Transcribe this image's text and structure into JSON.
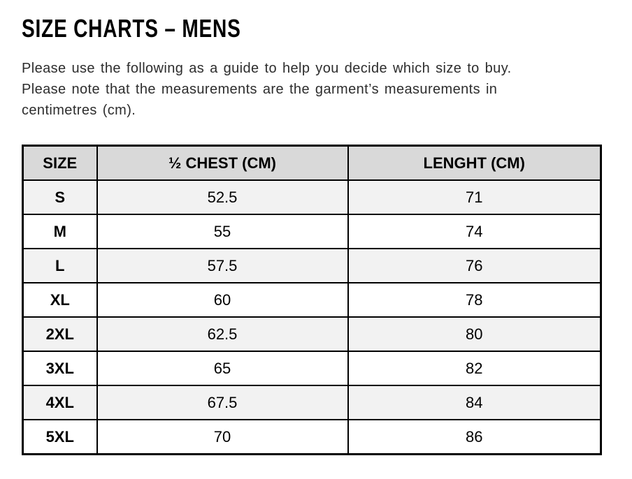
{
  "document": {
    "title": "SIZE CHARTS – MENS",
    "intro_lines": [
      "Please use the following as a guide to help you decide which size to buy.",
      "Please note that the measurements are the garment’s measurements in",
      "centimetres (cm)."
    ]
  },
  "size_table": {
    "headers": [
      "SIZE",
      "½ CHEST (CM)",
      "LENGHT (CM)"
    ],
    "rows": [
      [
        "S",
        "52.5",
        "71"
      ],
      [
        "M",
        "55",
        "74"
      ],
      [
        "L",
        "57.5",
        "76"
      ],
      [
        "XL",
        "60",
        "78"
      ],
      [
        "2XL",
        "62.5",
        "80"
      ],
      [
        "3XL",
        "65",
        "82"
      ],
      [
        "4XL",
        "67.5",
        "84"
      ],
      [
        "5XL",
        "70",
        "86"
      ]
    ]
  },
  "colors": {
    "header_bg": "#d9d9d9",
    "alt_row_bg": "#f2f2f2",
    "border": "#000000",
    "title_text": "#000000",
    "body_text": "#2d2d2d"
  }
}
